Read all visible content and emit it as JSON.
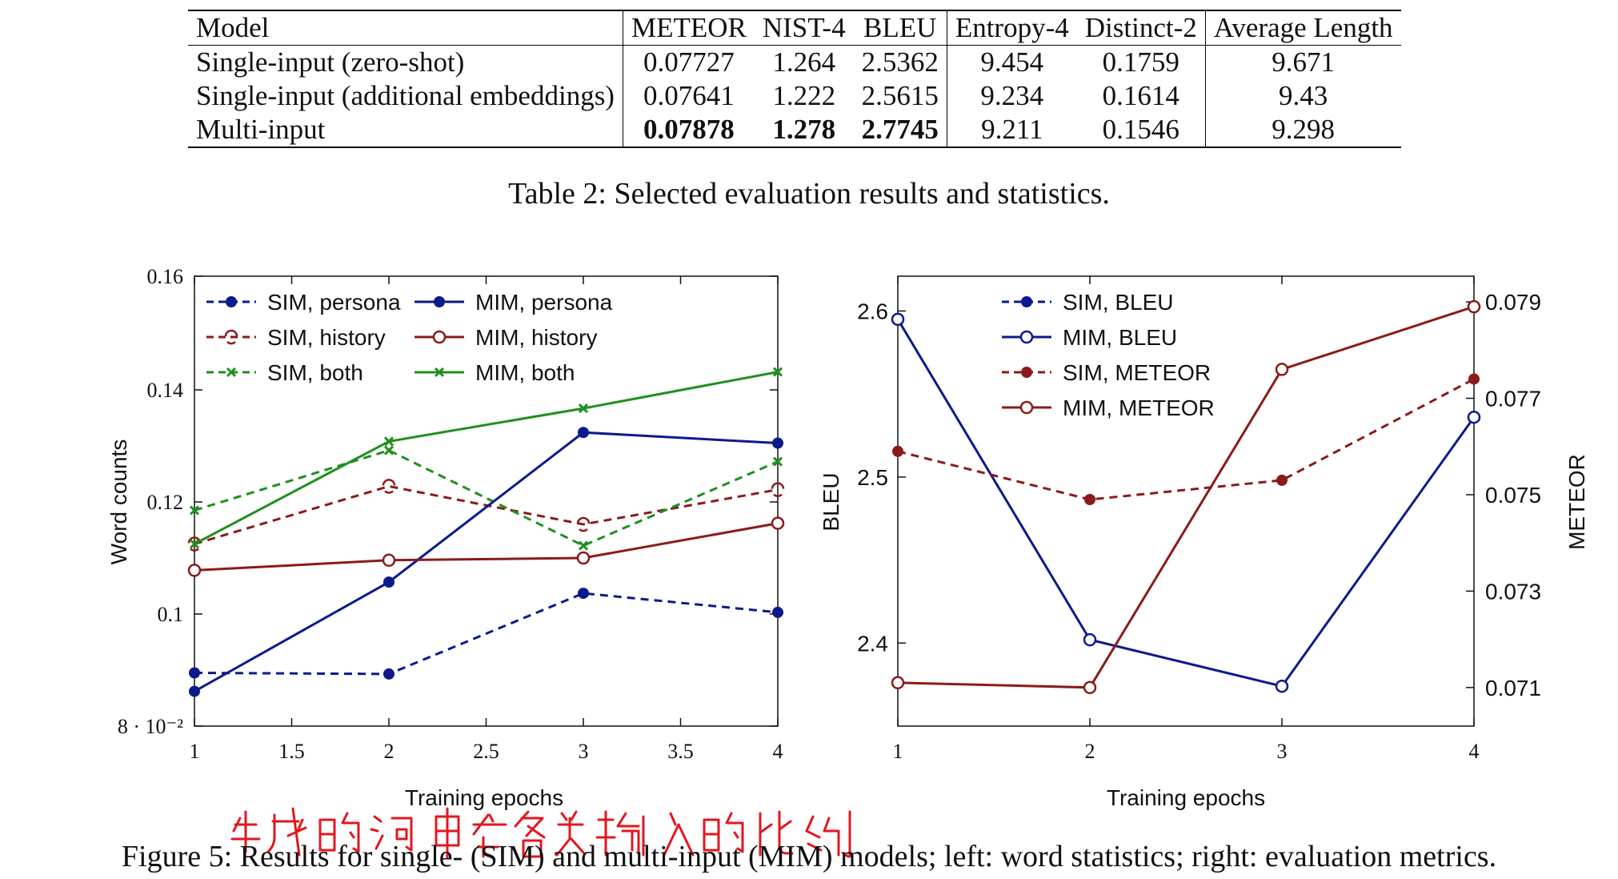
{
  "table": {
    "columns": [
      "Model",
      "METEOR",
      "NIST-4",
      "BLEU",
      "Entropy-4",
      "Distinct-2",
      "Average Length"
    ],
    "rows": [
      {
        "model": "Single-input (zero-shot)",
        "values": [
          "0.07727",
          "1.264",
          "2.5362",
          "9.454",
          "0.1759",
          "9.671"
        ],
        "bold": [
          false,
          false,
          false,
          false,
          false,
          false
        ]
      },
      {
        "model": "Single-input (additional embeddings)",
        "values": [
          "0.07641",
          "1.222",
          "2.5615",
          "9.234",
          "0.1614",
          "9.43"
        ],
        "bold": [
          false,
          false,
          false,
          false,
          false,
          false
        ]
      },
      {
        "model": "Multi-input",
        "values": [
          "0.07878",
          "1.278",
          "2.7745",
          "9.211",
          "0.1546",
          "9.298"
        ],
        "bold": [
          true,
          true,
          true,
          false,
          false,
          false
        ]
      }
    ],
    "caption": "Table 2: Selected evaluation results and statistics."
  },
  "chart_data": [
    {
      "type": "line",
      "xlabel": "Training epochs",
      "ylabel": "Word counts",
      "xlim": [
        1,
        4
      ],
      "ylim": [
        0.08,
        0.16
      ],
      "xticks": [
        "1",
        "1.5",
        "2",
        "2.5",
        "3",
        "3.5",
        "4"
      ],
      "yticks": [
        "8 · 10⁻²",
        "0.1",
        "0.12",
        "0.14",
        "0.16"
      ],
      "x": [
        1,
        2,
        3,
        4
      ],
      "legend_position": "top-left",
      "series": [
        {
          "name": "SIM, persona",
          "color": "#0c1a8c",
          "dashed": true,
          "marker": "dot",
          "values": [
            0.0895,
            0.0893,
            0.1037,
            0.1003
          ]
        },
        {
          "name": "SIM, history",
          "color": "#8b1a1a",
          "dashed": true,
          "marker": "halfcircle",
          "values": [
            0.1125,
            0.1228,
            0.116,
            0.1222
          ]
        },
        {
          "name": "SIM, both",
          "color": "#1f8f1f",
          "dashed": true,
          "marker": "x",
          "values": [
            0.1185,
            0.1292,
            0.1122,
            0.1272
          ]
        },
        {
          "name": "MIM, persona",
          "color": "#0c1a8c",
          "dashed": false,
          "marker": "dot",
          "values": [
            0.0862,
            0.1057,
            0.1324,
            0.1305
          ]
        },
        {
          "name": "MIM, history",
          "color": "#8b1a1a",
          "dashed": false,
          "marker": "circle",
          "values": [
            0.1078,
            0.1096,
            0.11,
            0.1162
          ]
        },
        {
          "name": "MIM, both",
          "color": "#1f8f1f",
          "dashed": false,
          "marker": "x",
          "values": [
            0.1125,
            0.1308,
            0.1367,
            0.1432
          ]
        }
      ]
    },
    {
      "type": "line",
      "xlabel": "Training epochs",
      "ylabel": "BLEU",
      "y2label": "METEOR",
      "xlim": [
        1,
        4
      ],
      "ylim": [
        2.35,
        2.62
      ],
      "y2lim": [
        0.0702,
        0.0795
      ],
      "xticks": [
        "1",
        "2",
        "3",
        "4"
      ],
      "yticks": [
        "2.4",
        "2.5",
        "2.6"
      ],
      "y2ticks": [
        "0.071",
        "0.073",
        "0.075",
        "0.077",
        "0.079"
      ],
      "x": [
        1,
        2,
        3,
        4
      ],
      "legend_position": "top-center",
      "series": [
        {
          "name": "SIM, BLEU",
          "axis": "left",
          "color": "#0c1a8c",
          "dashed": true,
          "marker": "dot",
          "values": null
        },
        {
          "name": "MIM, BLEU",
          "axis": "left",
          "color": "#0c1a8c",
          "dashed": false,
          "marker": "circle",
          "values": [
            2.595,
            2.402,
            2.374,
            2.536
          ]
        },
        {
          "name": "SIM, METEOR",
          "axis": "right",
          "color": "#8b1a1a",
          "dashed": true,
          "marker": "dot",
          "values": [
            0.0759,
            0.0749,
            0.0753,
            0.0774
          ]
        },
        {
          "name": "MIM, METEOR",
          "axis": "right",
          "color": "#8b1a1a",
          "dashed": false,
          "marker": "circle",
          "values": [
            0.0711,
            0.071,
            0.0776,
            0.0789
          ]
        }
      ]
    }
  ],
  "figure_caption": "Figure 5: Results for single- (SIM) and multi-input (MIM) models; left: word statistics; right: evaluation metrics.",
  "handwritten_note": "生成的词中在各类输入的比例"
}
